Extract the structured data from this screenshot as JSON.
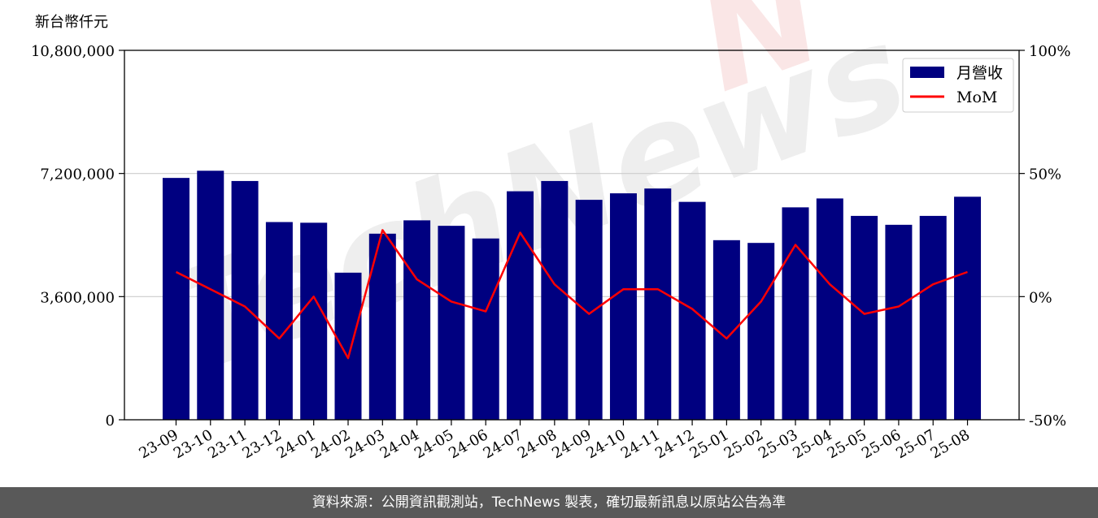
{
  "unit_label": "新台幣仟元",
  "footer": {
    "source_text": "資料來源：公開資訊觀測站，TechNews 製表，確切最新訊息以原站公告為準"
  },
  "watermark": "TechNews",
  "colors": {
    "bar": "#000080",
    "line": "#ff0000",
    "grid": "#cccccc",
    "footer_bg": "#595959"
  },
  "chart_data": {
    "type": "bar",
    "categories": [
      "23-09",
      "23-10",
      "23-11",
      "23-12",
      "24-01",
      "24-02",
      "24-03",
      "24-04",
      "24-05",
      "24-06",
      "24-07",
      "24-08",
      "24-09",
      "24-10",
      "24-11",
      "24-12",
      "25-01",
      "25-02",
      "25-03",
      "25-04",
      "25-05",
      "25-06",
      "25-07",
      "25-08"
    ],
    "series": [
      {
        "name": "月營收",
        "type": "bar",
        "axis": "left",
        "values": [
          7070000,
          7280000,
          6980000,
          5780000,
          5760000,
          4300000,
          5440000,
          5830000,
          5670000,
          5300000,
          6680000,
          6980000,
          6430000,
          6620000,
          6760000,
          6370000,
          5250000,
          5170000,
          6210000,
          6470000,
          5960000,
          5700000,
          5960000,
          6520000
        ]
      },
      {
        "name": "MoM",
        "type": "line",
        "axis": "right",
        "values": [
          10,
          3,
          -4,
          -17,
          0,
          -25,
          27,
          7,
          -2,
          -6,
          26,
          5,
          -7,
          3,
          3,
          -5,
          -17,
          -2,
          21,
          5,
          -7,
          -4,
          5,
          10
        ]
      }
    ],
    "y_left": {
      "ylim": [
        0,
        10800000
      ],
      "ticks": [
        0,
        3600000,
        7200000,
        10800000
      ],
      "tick_labels": [
        "0",
        "3,600,000",
        "7,200,000",
        "10,800,000"
      ]
    },
    "y_right": {
      "ylim": [
        -50,
        100
      ],
      "ticks": [
        -50,
        0,
        50,
        100
      ],
      "tick_labels": [
        "-50%",
        "0%",
        "50%",
        "100%"
      ]
    },
    "grid": "horizontal",
    "legend_position": "top-right"
  }
}
